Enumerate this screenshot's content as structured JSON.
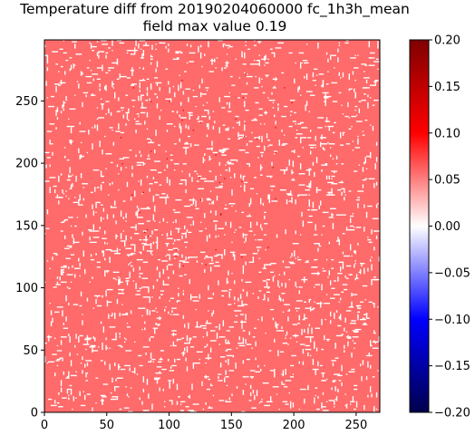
{
  "chart_data": [
    {
      "type": "heatmap",
      "title": "Temperature diff from 20190204060000 fc_1h3h_mean",
      "subtitle": "field max value 0.19",
      "xlabel": "",
      "ylabel": "",
      "xlim": [
        0,
        269
      ],
      "ylim": [
        0,
        299
      ],
      "x_ticks": [
        0,
        50,
        100,
        150,
        200,
        250
      ],
      "y_ticks": [
        0,
        50,
        100,
        150,
        200,
        250
      ],
      "dominant_value": 0.05,
      "background_value": 0.0,
      "dominant_color": "#ff6a6a",
      "background_color": "#ffffff",
      "max_value": 0.19,
      "colormap": "seismic",
      "colorbar": {
        "label": "",
        "vmin": -0.2,
        "vmax": 0.2,
        "ticks": [
          "0.20",
          "0.15",
          "0.10",
          "0.05",
          "0.00",
          "−0.05",
          "−0.10",
          "−0.15",
          "−0.20"
        ]
      },
      "grid": false,
      "legend": "none"
    }
  ]
}
